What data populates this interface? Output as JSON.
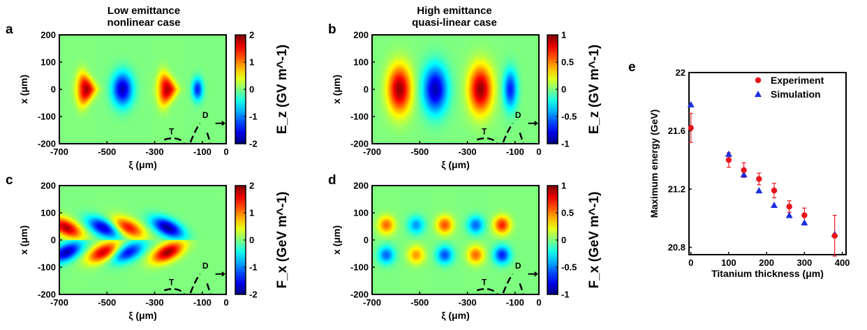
{
  "figure": {
    "column_titles": [
      [
        "Low emittance",
        "nonlinear case"
      ],
      [
        "High emittance",
        "quasi-linear case"
      ]
    ]
  },
  "colors": {
    "experiment": "#e8141c",
    "simulation": "#1c2fe0",
    "error_bar": "#e8141c"
  },
  "colormap": "jet",
  "chart_data": [
    {
      "panel": "a",
      "type": "heatmap",
      "field": "Ez",
      "pattern": "nonlinear",
      "xlabel": "ξ (μm)",
      "ylabel": "x (μm)",
      "xlim": [
        -700,
        0
      ],
      "ylim": [
        -200,
        200
      ],
      "xticks": [
        "-700",
        "-500",
        "-300",
        "-100",
        "0"
      ],
      "yticks": [
        "200",
        "100",
        "0",
        "-100",
        "-200"
      ],
      "colorbar": {
        "label": "E_z (GV m^-1)",
        "range": [
          -2,
          2
        ],
        "ticks": [
          "2",
          "1",
          "0",
          "-1",
          "-2"
        ]
      },
      "markers": [
        "T",
        "D"
      ]
    },
    {
      "panel": "b",
      "type": "heatmap",
      "field": "Ez",
      "pattern": "linear",
      "xlabel": "ξ (μm)",
      "ylabel": "x (μm)",
      "xlim": [
        -700,
        0
      ],
      "ylim": [
        -200,
        200
      ],
      "xticks": [
        "-700",
        "-500",
        "-300",
        "-100",
        "0"
      ],
      "yticks": [
        "200",
        "100",
        "0",
        "-100",
        "-200"
      ],
      "colorbar": {
        "label": "E_z (GV m^-1)",
        "range": [
          -1,
          1
        ],
        "ticks": [
          "1",
          "0.5",
          "0",
          "-0.5",
          "-1"
        ]
      },
      "markers": [
        "T",
        "D"
      ]
    },
    {
      "panel": "c",
      "type": "heatmap",
      "field": "Fx",
      "pattern": "nonlinear",
      "xlabel": "ξ (μm)",
      "ylabel": "x (μm)",
      "xlim": [
        -700,
        0
      ],
      "ylim": [
        -200,
        200
      ],
      "xticks": [
        "-700",
        "-500",
        "-300",
        "-100",
        "0"
      ],
      "yticks": [
        "200",
        "100",
        "0",
        "-100",
        "-200"
      ],
      "colorbar": {
        "label": "F_x (GeV m^-1)",
        "range": [
          -2,
          2
        ],
        "ticks": [
          "2",
          "1",
          "0",
          "-1",
          "-2"
        ]
      },
      "markers": [
        "T",
        "D"
      ]
    },
    {
      "panel": "d",
      "type": "heatmap",
      "field": "Fx",
      "pattern": "linear",
      "xlabel": "ξ (μm)",
      "ylabel": "x (μm)",
      "xlim": [
        -700,
        0
      ],
      "ylim": [
        -200,
        200
      ],
      "xticks": [
        "-700",
        "-500",
        "-300",
        "-100",
        "0"
      ],
      "yticks": [
        "200",
        "100",
        "0",
        "-100",
        "-200"
      ],
      "colorbar": {
        "label": "F_x (GeV m^-1)",
        "range": [
          -1,
          1
        ],
        "ticks": [
          "1",
          "0.5",
          "0",
          "-0.5",
          "-1"
        ]
      },
      "markers": [
        "T",
        "D"
      ]
    },
    {
      "panel": "e",
      "type": "scatter",
      "xlabel": "Titanium thickness (μm)",
      "ylabel": "Maximum energy (GeV)",
      "xlim": [
        -5,
        410
      ],
      "ylim": [
        20.75,
        22.0
      ],
      "xticks": [
        0,
        100,
        200,
        300,
        400
      ],
      "yticks": [
        20.8,
        21.2,
        21.6,
        22
      ],
      "legend": "top-right",
      "series": [
        {
          "name": "Experiment",
          "marker": "circle",
          "x": [
            0,
            100,
            140,
            180,
            220,
            260,
            300,
            380
          ],
          "y": [
            21.62,
            21.4,
            21.33,
            21.27,
            21.19,
            21.08,
            21.02,
            20.88
          ],
          "err": [
            0.1,
            0.05,
            0.05,
            0.04,
            0.05,
            0.04,
            0.05,
            0.14
          ]
        },
        {
          "name": "Simulation",
          "marker": "triangle",
          "x": [
            0,
            100,
            140,
            180,
            220,
            260,
            300,
            380
          ],
          "y": [
            21.78,
            21.44,
            21.3,
            21.19,
            21.09,
            21.02,
            20.97,
            20.89
          ]
        }
      ]
    }
  ]
}
